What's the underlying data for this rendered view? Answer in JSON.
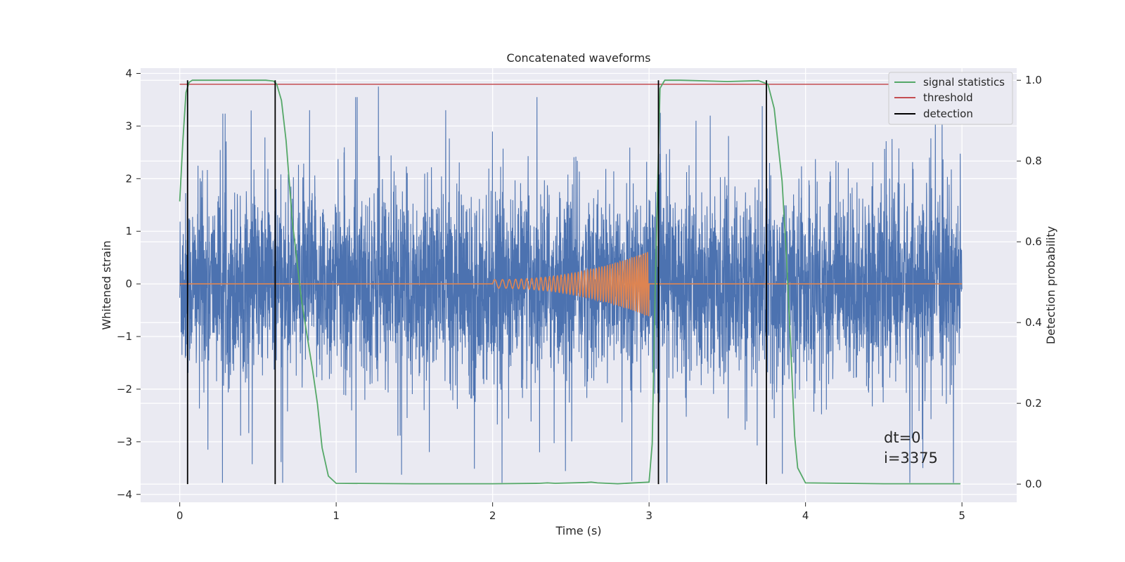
{
  "chart_data": {
    "type": "line",
    "title": "Concatenated waveforms",
    "xlabel": "Time (s)",
    "ylabel": "Whitened strain",
    "y2label": "Detection probability",
    "xlim": [
      -0.25,
      5.35
    ],
    "ylim": [
      -4.15,
      4.1
    ],
    "y2lim": [
      -0.045,
      1.03
    ],
    "x_ticks": [
      "0",
      "1",
      "2",
      "3",
      "4",
      "5"
    ],
    "y_ticks": [
      "−4",
      "−3",
      "−2",
      "−1",
      "0",
      "1",
      "2",
      "3",
      "4"
    ],
    "y2_ticks": [
      "0.0",
      "0.2",
      "0.4",
      "0.6",
      "0.8",
      "1.0"
    ],
    "grid": true,
    "legend_position": "top-right",
    "legend": [
      {
        "name": "signal statistics",
        "color": "#55a868"
      },
      {
        "name": "threshold",
        "color": "#c44e52"
      },
      {
        "name": "detection",
        "color": "#000000"
      }
    ],
    "noise": {
      "x_range": [
        0,
        5
      ],
      "typical_amplitude": 1.2,
      "peak_max": 3.75,
      "peak_min": -3.78,
      "color": "#4c72b0"
    },
    "chirp": {
      "x_start": 2.0,
      "x_end": 3.0,
      "max_amplitude": 0.62,
      "color": "#dd8452"
    },
    "signal_statistics": {
      "x": [
        0,
        0.02,
        0.04,
        0.06,
        0.08,
        0.1,
        0.2,
        0.4,
        0.55,
        0.6,
        0.62,
        0.65,
        0.68,
        0.72,
        0.78,
        0.85,
        0.88,
        0.91,
        0.95,
        1.0,
        1.5,
        2.0,
        2.3,
        2.35,
        2.4,
        2.6,
        2.63,
        2.67,
        2.8,
        3.0,
        3.02,
        3.04,
        3.07,
        3.1,
        3.2,
        3.5,
        3.7,
        3.76,
        3.8,
        3.85,
        3.88,
        3.91,
        3.93,
        3.95,
        4.0,
        4.5,
        4.99
      ],
      "y": [
        0.7,
        0.85,
        0.97,
        0.995,
        1.0,
        1.0,
        1.0,
        1.0,
        1.0,
        0.998,
        0.99,
        0.95,
        0.85,
        0.65,
        0.45,
        0.28,
        0.2,
        0.09,
        0.02,
        0.002,
        0.001,
        0.001,
        0.002,
        0.003,
        0.002,
        0.004,
        0.005,
        0.003,
        0.001,
        0.005,
        0.1,
        0.5,
        0.98,
        1.0,
        1.0,
        0.997,
        0.999,
        0.99,
        0.93,
        0.75,
        0.55,
        0.3,
        0.12,
        0.04,
        0.003,
        0.001,
        0.001
      ]
    },
    "threshold": {
      "x": [
        0,
        5
      ],
      "y": 0.99
    },
    "detections": {
      "x": [
        0.05,
        0.61,
        3.06,
        3.75
      ],
      "y_range": [
        0,
        1.0
      ]
    },
    "annotations": [
      "dt=0",
      "i=3375"
    ]
  }
}
